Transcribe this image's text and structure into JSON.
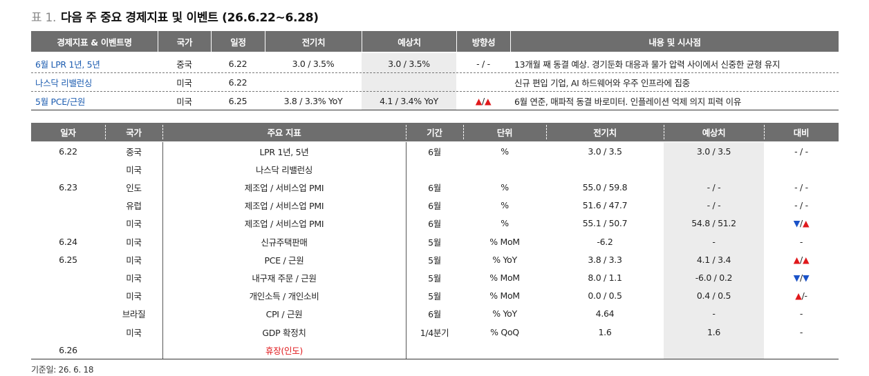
{
  "title": {
    "label": "표 1.",
    "text": "다음 주 중요 경제지표 및 이벤트 (26.6.22~6.28)"
  },
  "events": {
    "header": [
      "경제지표 & 이벤트명",
      "국가",
      "일정",
      "전기치",
      "예상치",
      "방향성",
      "내용 및 시사점"
    ],
    "rows": [
      [
        "6월 LPR 1년, 5년",
        "중국",
        "6.22",
        "3.0 / 3.5%",
        "3.0 / 3.5%",
        "- / -",
        "13개월 째 동결 예상. 경기둔화 대응과 물가 압력 사이에서 신중한 균형 유지"
      ],
      [
        "나스닥 리밸런싱",
        "미국",
        "6.22",
        null,
        null,
        null,
        "신규 편입 기업, AI 하드웨어와 우주 인프라에 집중"
      ],
      [
        "5월 PCE/근원",
        "미국",
        "6.25",
        "3.8 / 3.3% YoY",
        "4.1 / 3.4% YoY",
        "▲/▲",
        "6월 연준, 매파적 동결 바로미터. 인플레이션 억제 의지 피력 이유"
      ]
    ]
  },
  "indicators": {
    "header": [
      "일자",
      "국가",
      "주요 지표",
      "기간",
      "단위",
      "전기치",
      "예상치",
      "대비"
    ],
    "rows": [
      [
        "6.22",
        "중국",
        "LPR 1년, 5년",
        "6월",
        "%",
        "3.0 / 3.5",
        "3.0 / 3.5",
        "- / -"
      ],
      [
        null,
        "미국",
        "나스닥 리밸런싱",
        null,
        null,
        null,
        null,
        null
      ],
      [
        "6.23",
        "인도",
        "제조업 / 서비스업 PMI",
        "6월",
        "%",
        "55.0 / 59.8",
        "- / -",
        "- / -"
      ],
      [
        null,
        "유럽",
        "제조업 / 서비스업 PMI",
        "6월",
        "%",
        "51.6 / 47.7",
        "- / -",
        "- / -"
      ],
      [
        null,
        "미국",
        "제조업 / 서비스업 PMI",
        "6월",
        "%",
        "55.1 / 50.7",
        "54.8 / 51.2",
        "▼/▲"
      ],
      [
        "6.24",
        "미국",
        "신규주택판매",
        "5월",
        "% MoM",
        "-6.2",
        "-",
        "-"
      ],
      [
        "6.25",
        "미국",
        "PCE / 근원",
        "5월",
        "% YoY",
        "3.8 / 3.3",
        "4.1 / 3.4",
        "▲/▲"
      ],
      [
        null,
        "미국",
        "내구재 주문 / 근원",
        "5월",
        "% MoM",
        "8.0 / 1.1",
        "-6.0 / 0.2",
        "▼/▼"
      ],
      [
        null,
        "미국",
        "개인소득 / 개인소비",
        "5월",
        "% MoM",
        "0.0 / 0.5",
        "0.4 / 0.5",
        "▲/ -"
      ],
      [
        null,
        "브라질",
        "CPI / 근원",
        "6월",
        "% YoY",
        "4.64",
        "-",
        "-"
      ],
      [
        null,
        "미국",
        "GDP 확정치",
        "1/4분기",
        "% QoQ",
        "1.6",
        "1.6",
        "-"
      ],
      [
        "6.26",
        null,
        "휴장(인도)",
        null,
        null,
        null,
        null,
        null
      ]
    ]
  },
  "footer": "기준일: 26. 6. 18"
}
